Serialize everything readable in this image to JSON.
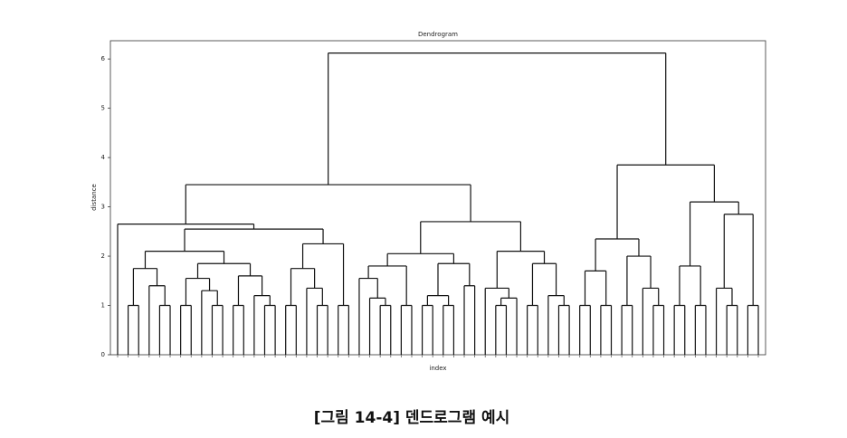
{
  "chart_data": {
    "type": "dendrogram",
    "title": "Dendrogram",
    "xlabel": "index",
    "ylabel": "distance",
    "ylim": [
      0,
      6.37
    ],
    "yticks": [
      0,
      1,
      2,
      3,
      4,
      5,
      6
    ],
    "color": "#111111",
    "tree": {
      "height": 6.12,
      "children": [
        {
          "height": 3.45,
          "children": [
            {
              "height": 2.65,
              "children": [
                {
                  "height": 0
                },
                {
                  "height": 2.55,
                  "children": [
                    {
                      "height": 2.1,
                      "children": [
                        {
                          "height": 1.75,
                          "children": [
                            {
                              "height": 1.0,
                              "children": [
                                {
                                  "height": 0
                                },
                                {
                                  "height": 0
                                }
                              ]
                            },
                            {
                              "height": 1.4,
                              "children": [
                                {
                                  "height": 0
                                },
                                {
                                  "height": 1.0,
                                  "children": [
                                    {
                                      "height": 0
                                    },
                                    {
                                      "height": 0
                                    }
                                  ]
                                }
                              ]
                            }
                          ]
                        },
                        {
                          "height": 1.85,
                          "children": [
                            {
                              "height": 1.55,
                              "children": [
                                {
                                  "height": 1.0,
                                  "children": [
                                    {
                                      "height": 0
                                    },
                                    {
                                      "height": 0
                                    }
                                  ]
                                },
                                {
                                  "height": 1.3,
                                  "children": [
                                    {
                                      "height": 0
                                    },
                                    {
                                      "height": 1.0,
                                      "children": [
                                        {
                                          "height": 0
                                        },
                                        {
                                          "height": 0
                                        }
                                      ]
                                    }
                                  ]
                                }
                              ]
                            },
                            {
                              "height": 1.6,
                              "children": [
                                {
                                  "height": 1.0,
                                  "children": [
                                    {
                                      "height": 0
                                    },
                                    {
                                      "height": 0
                                    }
                                  ]
                                },
                                {
                                  "height": 1.2,
                                  "children": [
                                    {
                                      "height": 0
                                    },
                                    {
                                      "height": 1.0,
                                      "children": [
                                        {
                                          "height": 0
                                        },
                                        {
                                          "height": 0
                                        }
                                      ]
                                    }
                                  ]
                                }
                              ]
                            }
                          ]
                        }
                      ]
                    },
                    {
                      "height": 2.25,
                      "children": [
                        {
                          "height": 1.75,
                          "children": [
                            {
                              "height": 1.0,
                              "children": [
                                {
                                  "height": 0
                                },
                                {
                                  "height": 0
                                }
                              ]
                            },
                            {
                              "height": 1.35,
                              "children": [
                                {
                                  "height": 0
                                },
                                {
                                  "height": 1.0,
                                  "children": [
                                    {
                                      "height": 0
                                    },
                                    {
                                      "height": 0
                                    }
                                  ]
                                }
                              ]
                            }
                          ]
                        },
                        {
                          "height": 1.0,
                          "children": [
                            {
                              "height": 0
                            },
                            {
                              "height": 0
                            }
                          ]
                        }
                      ]
                    }
                  ]
                }
              ]
            },
            {
              "height": 2.7,
              "children": [
                {
                  "height": 2.05,
                  "children": [
                    {
                      "height": 1.8,
                      "children": [
                        {
                          "height": 1.55,
                          "children": [
                            {
                              "height": 0
                            },
                            {
                              "height": 1.15,
                              "children": [
                                {
                                  "height": 0
                                },
                                {
                                  "height": 1.0,
                                  "children": [
                                    {
                                      "height": 0
                                    },
                                    {
                                      "height": 0
                                    }
                                  ]
                                }
                              ]
                            }
                          ]
                        },
                        {
                          "height": 1.0,
                          "children": [
                            {
                              "height": 0
                            },
                            {
                              "height": 0
                            }
                          ]
                        }
                      ]
                    },
                    {
                      "height": 1.85,
                      "children": [
                        {
                          "height": 1.2,
                          "children": [
                            {
                              "height": 1.0,
                              "children": [
                                {
                                  "height": 0
                                },
                                {
                                  "height": 0
                                }
                              ]
                            },
                            {
                              "height": 1.0,
                              "children": [
                                {
                                  "height": 0
                                },
                                {
                                  "height": 0
                                }
                              ]
                            }
                          ]
                        },
                        {
                          "height": 1.4,
                          "children": [
                            {
                              "height": 0
                            },
                            {
                              "height": 0
                            }
                          ]
                        }
                      ]
                    }
                  ]
                },
                {
                  "height": 2.1,
                  "children": [
                    {
                      "height": 1.35,
                      "children": [
                        {
                          "height": 0
                        },
                        {
                          "height": 1.15,
                          "children": [
                            {
                              "height": 1.0,
                              "children": [
                                {
                                  "height": 0
                                },
                                {
                                  "height": 0
                                }
                              ]
                            },
                            {
                              "height": 0
                            }
                          ]
                        }
                      ]
                    },
                    {
                      "height": 1.85,
                      "children": [
                        {
                          "height": 1.0,
                          "children": [
                            {
                              "height": 0
                            },
                            {
                              "height": 0
                            }
                          ]
                        },
                        {
                          "height": 1.2,
                          "children": [
                            {
                              "height": 0
                            },
                            {
                              "height": 1.0,
                              "children": [
                                {
                                  "height": 0
                                },
                                {
                                  "height": 0
                                }
                              ]
                            }
                          ]
                        }
                      ]
                    }
                  ]
                }
              ]
            }
          ]
        },
        {
          "height": 3.85,
          "children": [
            {
              "height": 2.35,
              "children": [
                {
                  "height": 1.7,
                  "children": [
                    {
                      "height": 1.0,
                      "children": [
                        {
                          "height": 0
                        },
                        {
                          "height": 0
                        }
                      ]
                    },
                    {
                      "height": 1.0,
                      "children": [
                        {
                          "height": 0
                        },
                        {
                          "height": 0
                        }
                      ]
                    }
                  ]
                },
                {
                  "height": 2.0,
                  "children": [
                    {
                      "height": 1.0,
                      "children": [
                        {
                          "height": 0
                        },
                        {
                          "height": 0
                        }
                      ]
                    },
                    {
                      "height": 1.35,
                      "children": [
                        {
                          "height": 0
                        },
                        {
                          "height": 1.0,
                          "children": [
                            {
                              "height": 0
                            },
                            {
                              "height": 0
                            }
                          ]
                        }
                      ]
                    }
                  ]
                }
              ]
            },
            {
              "height": 3.1,
              "children": [
                {
                  "height": 1.8,
                  "children": [
                    {
                      "height": 1.0,
                      "children": [
                        {
                          "height": 0
                        },
                        {
                          "height": 0
                        }
                      ]
                    },
                    {
                      "height": 1.0,
                      "children": [
                        {
                          "height": 0
                        },
                        {
                          "height": 0
                        }
                      ]
                    }
                  ]
                },
                {
                  "height": 2.85,
                  "children": [
                    {
                      "height": 1.35,
                      "children": [
                        {
                          "height": 0
                        },
                        {
                          "height": 1.0,
                          "children": [
                            {
                              "height": 0
                            },
                            {
                              "height": 0
                            }
                          ]
                        }
                      ]
                    },
                    {
                      "height": 1.0,
                      "children": [
                        {
                          "height": 0
                        },
                        {
                          "height": 0
                        }
                      ]
                    }
                  ]
                }
              ]
            }
          ]
        }
      ]
    }
  },
  "caption": "[그림 14-4] 덴드로그램 예시"
}
